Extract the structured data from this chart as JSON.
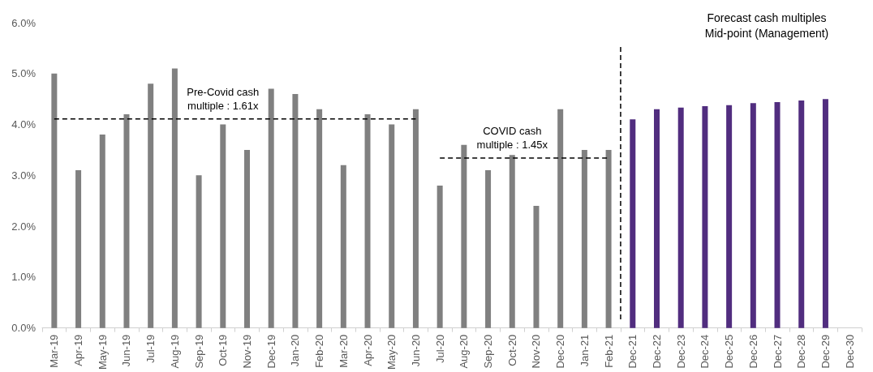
{
  "chart_data": {
    "type": "bar",
    "categories": [
      "Mar-19",
      "Apr-19",
      "May-19",
      "Jun-19",
      "Jul-19",
      "Aug-19",
      "Sep-19",
      "Oct-19",
      "Nov-19",
      "Dec-19",
      "Jan-20",
      "Feb-20",
      "Mar-20",
      "Apr-20",
      "May-20",
      "Jun-20",
      "Jul-20",
      "Aug-20",
      "Sep-20",
      "Oct-20",
      "Nov-20",
      "Dec-20",
      "Jan-21",
      "Feb-21",
      "Dec-21",
      "Dec-22",
      "Dec-23",
      "Dec-24",
      "Dec-25",
      "Dec-26",
      "Dec-27",
      "Dec-28",
      "Dec-29",
      "Dec-30"
    ],
    "series": [
      {
        "values": [
          5.0,
          3.1,
          3.8,
          4.2,
          4.8,
          5.1,
          3.0,
          4.0,
          3.5,
          4.7,
          4.6,
          4.3,
          3.2,
          4.2,
          4.0,
          4.3,
          2.8,
          3.6,
          3.1,
          3.4,
          2.4,
          4.3,
          3.5,
          3.5,
          4.1,
          4.3,
          4.33,
          4.36,
          4.38,
          4.42,
          4.44,
          4.47,
          4.5,
          null
        ],
        "colors": [
          "#808080",
          "#808080",
          "#808080",
          "#808080",
          "#808080",
          "#808080",
          "#808080",
          "#808080",
          "#808080",
          "#808080",
          "#808080",
          "#808080",
          "#808080",
          "#808080",
          "#808080",
          "#808080",
          "#808080",
          "#808080",
          "#808080",
          "#808080",
          "#808080",
          "#808080",
          "#808080",
          "#808080",
          "#512d7f",
          "#512d7f",
          "#512d7f",
          "#512d7f",
          "#512d7f",
          "#512d7f",
          "#512d7f",
          "#512d7f",
          "#512d7f",
          "#512d7f"
        ]
      },
      {
        "type": "line",
        "name": "Pre-Covid cash multiple : 1.61x",
        "color": "#000000",
        "line_style": "dashed",
        "marker": "none",
        "values": [
          4.11,
          4.11,
          4.11,
          4.11,
          4.11,
          4.11,
          4.11,
          4.11,
          4.11,
          4.11,
          4.11,
          4.11,
          4.11,
          4.11,
          4.11,
          4.11,
          null,
          null,
          null,
          null,
          null,
          null,
          null,
          null,
          null,
          null,
          null,
          null,
          null,
          null,
          null,
          null,
          null,
          null
        ]
      },
      {
        "type": "line",
        "name": "COVID cash multiple : 1.45x",
        "color": "#000000",
        "line_style": "dashed",
        "marker": "none",
        "values": [
          null,
          null,
          null,
          null,
          null,
          null,
          null,
          null,
          null,
          null,
          null,
          null,
          null,
          null,
          null,
          null,
          3.34,
          3.34,
          3.34,
          3.34,
          3.34,
          3.34,
          3.34,
          3.34,
          null,
          null,
          null,
          null,
          null,
          null,
          null,
          null,
          null,
          null
        ]
      }
    ],
    "ylim": [
      0,
      6
    ],
    "yticks": [
      {
        "value": 0,
        "label": "0.0%"
      },
      {
        "value": 1,
        "label": "1.0%"
      },
      {
        "value": 2,
        "label": "2.0%"
      },
      {
        "value": 3,
        "label": "3.0%"
      },
      {
        "value": 4,
        "label": "4.0%"
      },
      {
        "value": 5,
        "label": "5.0%"
      },
      {
        "value": 6,
        "label": "6.0%"
      }
    ],
    "ref_lines": [
      {
        "axis": "x",
        "value": "Dec-21",
        "color": "#000000",
        "line_style": "dashed"
      }
    ],
    "annotations": [
      "Forecast cash multiples\nMid-point (Management)"
    ],
    "grid": false,
    "legend": false
  }
}
